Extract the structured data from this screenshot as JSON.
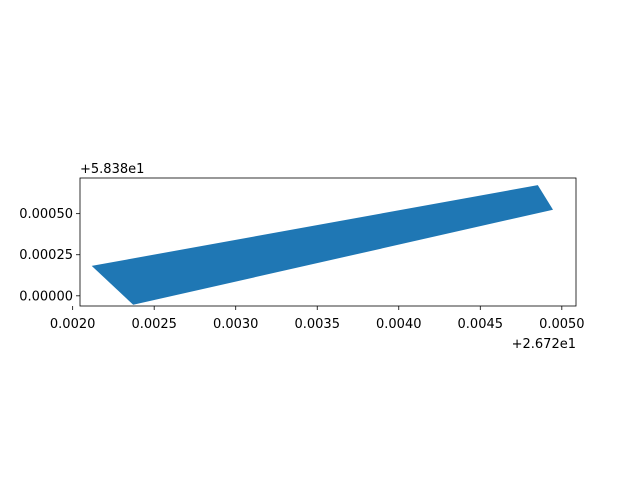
{
  "chart_data": {
    "type": "area",
    "title": "",
    "xlabel": "",
    "ylabel": "",
    "x_offset_label": "+2.672e1",
    "y_offset_label": "+5.838e1",
    "x_ticks": [
      0.002,
      0.0025,
      0.003,
      0.0035,
      0.004,
      0.0045,
      0.005
    ],
    "x_tick_labels": [
      "0.0020",
      "0.0025",
      "0.0030",
      "0.0035",
      "0.0040",
      "0.0045",
      "0.0050"
    ],
    "y_ticks": [
      0.0,
      0.00025,
      0.0005
    ],
    "y_tick_labels": [
      "0.00000",
      "0.00025",
      "0.00050"
    ],
    "xlim": [
      0.002045,
      0.005087
    ],
    "ylim": [
      -6.2e-05,
      0.000717
    ],
    "grid": false,
    "polygon": {
      "x": [
        0.002117,
        0.002371,
        0.004946,
        0.004853
      ],
      "y": [
        0.000182,
        -5.5e-05,
        0.000524,
        0.000674
      ]
    },
    "fill_color": "#1f77b4"
  }
}
